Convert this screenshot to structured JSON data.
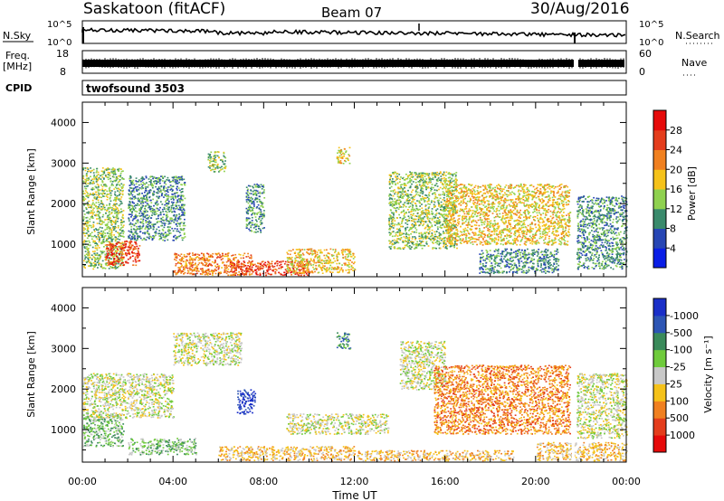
{
  "header": {
    "station": "Saskatoon (fitACF)",
    "beam": "Beam 07",
    "date": "30/Aug/2016"
  },
  "ancillary": {
    "nsky_label": "N.Sky",
    "nsearch_label": "N.Search",
    "noise_ticks": [
      "10^5",
      "10^0"
    ],
    "freq_label_line1": "Freq.",
    "freq_label_line2": "[MHz]",
    "freq_ticks": [
      "18",
      "8"
    ],
    "nave_label": "Nave",
    "nave_ticks": [
      "60",
      "0"
    ],
    "cpid_label": "CPID",
    "cpid_value": "twofsound 3503"
  },
  "chart_data": [
    {
      "type": "heatmap",
      "name": "power",
      "ylabel": "Slant Range [km]",
      "xlabel": "Time UT",
      "x_ticks": [
        "00:00",
        "04:00",
        "08:00",
        "12:00",
        "16:00",
        "20:00",
        "00:00"
      ],
      "xlim_hours": [
        0,
        24
      ],
      "y_ticks": [
        1000,
        2000,
        3000,
        4000
      ],
      "ylim": [
        200,
        4500
      ],
      "colorbar": {
        "label": "Power [dB]",
        "ticks": [
          "4",
          "8",
          "12",
          "16",
          "20",
          "24",
          "28"
        ],
        "colors": [
          "#0a1ee6",
          "#2746b4",
          "#3a8a6c",
          "#8fd14f",
          "#f5c21a",
          "#f08020",
          "#e43d1c",
          "#e60a0a"
        ]
      },
      "patches": [
        {
          "t0": 0.0,
          "t1": 1.8,
          "r0": 400,
          "r1": 2900,
          "level": 3
        },
        {
          "t0": 1.0,
          "t1": 2.5,
          "r0": 500,
          "r1": 1100,
          "level": 6
        },
        {
          "t0": 2.0,
          "t1": 4.5,
          "r0": 1100,
          "r1": 2700,
          "level": 2
        },
        {
          "t0": 4.0,
          "t1": 7.5,
          "r0": 250,
          "r1": 800,
          "level": 5
        },
        {
          "t0": 6.5,
          "t1": 10.0,
          "r0": 250,
          "r1": 600,
          "level": 6
        },
        {
          "t0": 5.5,
          "t1": 6.3,
          "r0": 2800,
          "r1": 3300,
          "level": 3
        },
        {
          "t0": 7.2,
          "t1": 8.0,
          "r0": 1300,
          "r1": 2500,
          "level": 2
        },
        {
          "t0": 9.0,
          "t1": 12.0,
          "r0": 300,
          "r1": 900,
          "level": 4
        },
        {
          "t0": 11.2,
          "t1": 11.8,
          "r0": 3000,
          "r1": 3400,
          "level": 4
        },
        {
          "t0": 13.5,
          "t1": 16.5,
          "r0": 900,
          "r1": 2800,
          "level": 3
        },
        {
          "t0": 16.0,
          "t1": 21.5,
          "r0": 1000,
          "r1": 2500,
          "level": 4
        },
        {
          "t0": 17.5,
          "t1": 21.0,
          "r0": 300,
          "r1": 900,
          "level": 2
        },
        {
          "t0": 21.8,
          "t1": 24.0,
          "r0": 400,
          "r1": 2200,
          "level": 2
        }
      ]
    },
    {
      "type": "heatmap",
      "name": "velocity",
      "ylabel": "Slant Range [km]",
      "xlabel": "Time UT",
      "x_ticks": [
        "00:00",
        "04:00",
        "08:00",
        "12:00",
        "16:00",
        "20:00",
        "00:00"
      ],
      "xlim_hours": [
        0,
        24
      ],
      "y_ticks": [
        1000,
        2000,
        3000,
        4000
      ],
      "ylim": [
        200,
        4500
      ],
      "colorbar": {
        "label": "Velocity [m s⁻¹]",
        "ticks": [
          "1000",
          "500",
          "100",
          "25",
          "-25",
          "-100",
          "-500",
          "-1000"
        ],
        "colors": [
          "#1a2fc8",
          "#2d55b4",
          "#3a8a5a",
          "#6fcb3c",
          "#c8c8c8",
          "#f5c21a",
          "#f08020",
          "#e43d1c",
          "#e60a0a"
        ]
      },
      "patches": [
        {
          "t0": 0.0,
          "t1": 1.8,
          "r0": 600,
          "r1": 1400,
          "level": 3
        },
        {
          "t0": 0.0,
          "t1": 4.0,
          "r0": 1300,
          "r1": 2400,
          "level": 4
        },
        {
          "t0": 2.0,
          "t1": 5.0,
          "r0": 400,
          "r1": 800,
          "level": 3
        },
        {
          "t0": 4.0,
          "t1": 7.0,
          "r0": 2600,
          "r1": 3400,
          "level": 4
        },
        {
          "t0": 6.8,
          "t1": 7.6,
          "r0": 1400,
          "r1": 2000,
          "level": 0
        },
        {
          "t0": 6.0,
          "t1": 12.0,
          "r0": 250,
          "r1": 600,
          "level": 5
        },
        {
          "t0": 9.0,
          "t1": 13.5,
          "r0": 900,
          "r1": 1400,
          "level": 4
        },
        {
          "t0": 11.2,
          "t1": 11.8,
          "r0": 3000,
          "r1": 3400,
          "level": 2
        },
        {
          "t0": 12.0,
          "t1": 19.0,
          "r0": 250,
          "r1": 500,
          "level": 5
        },
        {
          "t0": 14.0,
          "t1": 16.0,
          "r0": 2000,
          "r1": 3200,
          "level": 4
        },
        {
          "t0": 15.5,
          "t1": 21.5,
          "r0": 900,
          "r1": 2600,
          "level": 6
        },
        {
          "t0": 21.8,
          "t1": 24.0,
          "r0": 800,
          "r1": 2400,
          "level": 4
        },
        {
          "t0": 20.0,
          "t1": 24.0,
          "r0": 250,
          "r1": 700,
          "level": 5
        }
      ]
    }
  ]
}
